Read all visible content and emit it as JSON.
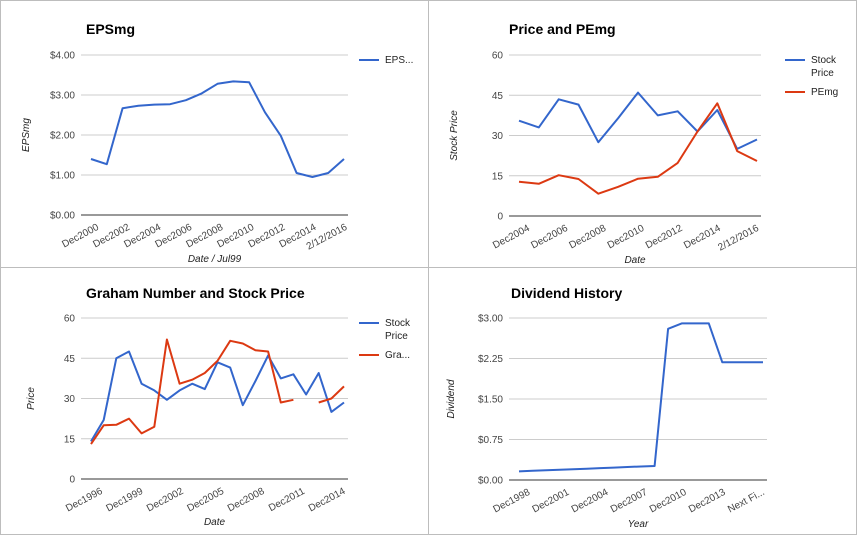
{
  "colors": {
    "blue": "#3366cc",
    "red": "#dc3912",
    "grid": "#cccccc"
  },
  "chart_data": [
    {
      "type": "line",
      "title": "EPSmg",
      "xlabel": "Date / Jul99",
      "ylabel": "EPSmg",
      "ylim": [
        0,
        4
      ],
      "y_ticks": [
        "$0.00",
        "$1.00",
        "$2.00",
        "$3.00",
        "$4.00"
      ],
      "x_ticks": [
        "Dec2000",
        "Dec2002",
        "Dec2004",
        "Dec2006",
        "Dec2008",
        "Dec2010",
        "Dec2012",
        "Dec2014",
        "2/12/2016"
      ],
      "legend": "right",
      "grid": true,
      "series": [
        {
          "name": "EPS...",
          "color": "#3366cc",
          "values": [
            1.4,
            1.27,
            2.67,
            2.73,
            2.76,
            2.77,
            2.87,
            3.04,
            3.28,
            3.34,
            3.32,
            2.57,
            1.98,
            1.05,
            0.95,
            1.05,
            1.4
          ]
        }
      ]
    },
    {
      "type": "line",
      "title": "Price and PEmg",
      "xlabel": "Date",
      "ylabel": "Stock Price",
      "ylim": [
        0,
        60
      ],
      "y_ticks": [
        "0",
        "15",
        "30",
        "45",
        "60"
      ],
      "x_ticks": [
        "Dec2004",
        "Dec2006",
        "Dec2008",
        "Dec2010",
        "Dec2012",
        "Dec2014",
        "2/12/2016"
      ],
      "legend": "right",
      "grid": true,
      "series": [
        {
          "name": "Stock Price",
          "color": "#3366cc",
          "values": [
            35.5,
            33.0,
            43.5,
            41.5,
            27.5,
            36.5,
            46.0,
            37.5,
            39.0,
            31.5,
            39.5,
            25.0,
            28.5
          ]
        },
        {
          "name": "PEmg",
          "color": "#dc3912",
          "values": [
            12.8,
            12.0,
            15.2,
            13.8,
            8.3,
            10.9,
            13.9,
            14.6,
            19.8,
            31.5,
            42.0,
            24.2,
            20.5
          ]
        }
      ]
    },
    {
      "type": "line",
      "title": "Graham Number and Stock Price",
      "xlabel": "Date",
      "ylabel": "Price",
      "ylim": [
        0,
        60
      ],
      "y_ticks": [
        "0",
        "15",
        "30",
        "45",
        "60"
      ],
      "x_ticks": [
        "Dec1996",
        "Dec1999",
        "Dec2002",
        "Dec2005",
        "Dec2008",
        "Dec2011",
        "Dec2014"
      ],
      "legend": "right",
      "grid": true,
      "series": [
        {
          "name": "Stock Price",
          "color": "#3366cc",
          "values": [
            14.0,
            22.0,
            45.0,
            47.5,
            35.5,
            33.0,
            29.5,
            33.0,
            35.5,
            33.5,
            43.5,
            41.5,
            27.5,
            36.5,
            46.0,
            37.5,
            39.0,
            31.5,
            39.5,
            25.0,
            28.5
          ]
        },
        {
          "name": "Gra...",
          "color": "#dc3912",
          "values": [
            13.0,
            20.0,
            20.2,
            22.5,
            17.0,
            19.5,
            52.0,
            35.5,
            37.0,
            39.5,
            44.0,
            51.5,
            50.5,
            48.0,
            47.5,
            28.5,
            29.5,
            null,
            28.5,
            30.0,
            34.5
          ]
        }
      ]
    },
    {
      "type": "line",
      "title": "Dividend History",
      "xlabel": "Year",
      "ylabel": "Dividend",
      "ylim": [
        0,
        3
      ],
      "y_ticks": [
        "$0.00",
        "$0.75",
        "$1.50",
        "$2.25",
        "$3.00"
      ],
      "x_ticks": [
        "Dec1998",
        "Dec2001",
        "Dec2004",
        "Dec2007",
        "Dec2010",
        "Dec2013",
        "Next Fi..."
      ],
      "grid": true,
      "series": [
        {
          "color": "#3366cc",
          "values": [
            0.16,
            0.17,
            0.18,
            0.19,
            0.2,
            0.21,
            0.22,
            0.23,
            0.24,
            0.25,
            0.26,
            2.8,
            2.9,
            2.9,
            2.9,
            2.18,
            2.18,
            2.18,
            2.18
          ]
        }
      ]
    }
  ]
}
